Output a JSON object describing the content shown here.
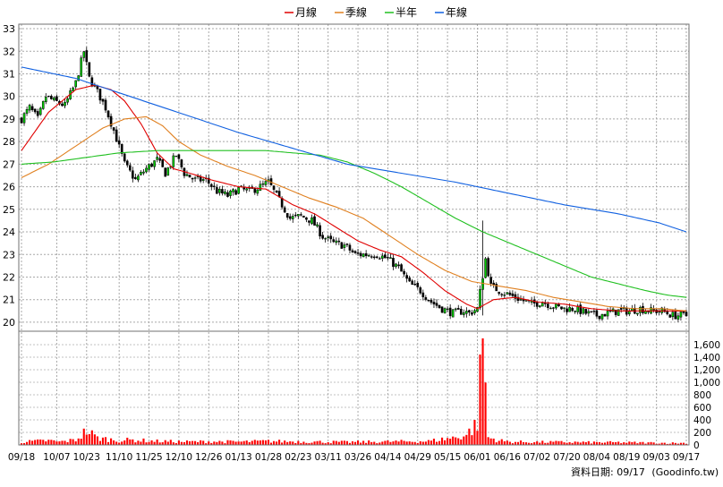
{
  "chart_data": {
    "type": "candlestick",
    "legend": {
      "placement": "top-center",
      "items": [
        {
          "name": "月線",
          "color": "#e00000"
        },
        {
          "name": "季線",
          "color": "#e08020"
        },
        {
          "name": "半年",
          "color": "#20c020"
        },
        {
          "name": "年線",
          "color": "#1060e0"
        }
      ]
    },
    "price_axis": {
      "min": 19.6,
      "max": 33.2,
      "ticks": [
        20,
        21,
        22,
        23,
        24,
        25,
        26,
        27,
        28,
        29,
        30,
        31,
        32,
        33
      ],
      "position": "left"
    },
    "volume_axis": {
      "min": 0,
      "max": 1700,
      "ticks": [
        0,
        200,
        400,
        600,
        800,
        1000,
        1200,
        1400,
        1600
      ],
      "tick_labels": [
        "0",
        "200",
        "400",
        "600",
        "800",
        "1,000",
        "1,200",
        "1,400",
        "1,600"
      ],
      "position": "right"
    },
    "x_labels": [
      {
        "label": "09/18",
        "idx": 0
      },
      {
        "label": "10/07",
        "idx": 13
      },
      {
        "label": "10/23",
        "idx": 24
      },
      {
        "label": "11/10",
        "idx": 36
      },
      {
        "label": "11/25",
        "idx": 47
      },
      {
        "label": "12/10",
        "idx": 58
      },
      {
        "label": "12/26",
        "idx": 69
      },
      {
        "label": "01/13",
        "idx": 80
      },
      {
        "label": "01/28",
        "idx": 91
      },
      {
        "label": "02/23",
        "idx": 102
      },
      {
        "label": "03/11",
        "idx": 113
      },
      {
        "label": "03/26",
        "idx": 124
      },
      {
        "label": "04/14",
        "idx": 135
      },
      {
        "label": "04/29",
        "idx": 146
      },
      {
        "label": "05/15",
        "idx": 157
      },
      {
        "label": "06/01",
        "idx": 168
      },
      {
        "label": "06/16",
        "idx": 179
      },
      {
        "label": "07/02",
        "idx": 190
      },
      {
        "label": "07/20",
        "idx": 201
      },
      {
        "label": "08/04",
        "idx": 212
      },
      {
        "label": "08/19",
        "idx": 223
      },
      {
        "label": "09/03",
        "idx": 234
      },
      {
        "label": "09/17",
        "idx": 245
      }
    ],
    "n_days": 246,
    "price_anchors": [
      [
        0,
        29.0
      ],
      [
        3,
        29.5
      ],
      [
        6,
        29.0
      ],
      [
        9,
        30.0
      ],
      [
        12,
        29.8
      ],
      [
        16,
        29.6
      ],
      [
        20,
        30.6
      ],
      [
        23,
        32.0
      ],
      [
        25,
        30.8
      ],
      [
        28,
        30.2
      ],
      [
        31,
        29.5
      ],
      [
        34,
        28.5
      ],
      [
        38,
        27.0
      ],
      [
        42,
        26.3
      ],
      [
        46,
        26.8
      ],
      [
        50,
        27.2
      ],
      [
        53,
        26.6
      ],
      [
        57,
        27.4
      ],
      [
        60,
        26.6
      ],
      [
        64,
        26.3
      ],
      [
        68,
        26.3
      ],
      [
        72,
        25.8
      ],
      [
        76,
        25.6
      ],
      [
        80,
        25.9
      ],
      [
        84,
        25.8
      ],
      [
        88,
        26.0
      ],
      [
        91,
        26.2
      ],
      [
        95,
        25.4
      ],
      [
        99,
        24.6
      ],
      [
        103,
        24.7
      ],
      [
        107,
        24.5
      ],
      [
        111,
        23.8
      ],
      [
        115,
        23.5
      ],
      [
        119,
        23.4
      ],
      [
        123,
        23.0
      ],
      [
        127,
        23.0
      ],
      [
        131,
        23.0
      ],
      [
        135,
        22.8
      ],
      [
        139,
        22.4
      ],
      [
        143,
        21.7
      ],
      [
        147,
        21.4
      ],
      [
        151,
        20.9
      ],
      [
        155,
        20.6
      ],
      [
        159,
        20.4
      ],
      [
        163,
        20.5
      ],
      [
        165,
        20.4
      ],
      [
        168,
        20.6
      ],
      [
        171,
        22.8
      ],
      [
        173,
        21.6
      ],
      [
        176,
        21.4
      ],
      [
        180,
        21.2
      ],
      [
        184,
        21.0
      ],
      [
        188,
        20.8
      ],
      [
        192,
        20.9
      ],
      [
        196,
        20.7
      ],
      [
        200,
        20.6
      ],
      [
        204,
        20.6
      ],
      [
        208,
        20.4
      ],
      [
        212,
        20.3
      ],
      [
        216,
        20.4
      ],
      [
        220,
        20.5
      ],
      [
        224,
        20.5
      ],
      [
        228,
        20.6
      ],
      [
        232,
        20.5
      ],
      [
        236,
        20.5
      ],
      [
        240,
        20.3
      ],
      [
        245,
        20.3
      ]
    ],
    "ma_series": [
      {
        "name": "月線",
        "color": "#e00000",
        "anchors": [
          [
            0,
            27.6
          ],
          [
            10,
            29.3
          ],
          [
            20,
            30.3
          ],
          [
            27,
            30.5
          ],
          [
            33,
            30.3
          ],
          [
            38,
            29.8
          ],
          [
            44,
            28.8
          ],
          [
            50,
            27.5
          ],
          [
            56,
            26.8
          ],
          [
            62,
            26.6
          ],
          [
            70,
            26.3
          ],
          [
            80,
            26.0
          ],
          [
            90,
            25.9
          ],
          [
            100,
            25.2
          ],
          [
            108,
            24.8
          ],
          [
            116,
            24.2
          ],
          [
            124,
            23.6
          ],
          [
            132,
            23.2
          ],
          [
            140,
            22.9
          ],
          [
            148,
            22.2
          ],
          [
            156,
            21.4
          ],
          [
            164,
            20.8
          ],
          [
            168,
            20.6
          ],
          [
            174,
            21.0
          ],
          [
            182,
            21.1
          ],
          [
            190,
            20.9
          ],
          [
            200,
            20.8
          ],
          [
            210,
            20.6
          ],
          [
            220,
            20.5
          ],
          [
            230,
            20.5
          ],
          [
            238,
            20.5
          ],
          [
            245,
            20.5
          ]
        ]
      },
      {
        "name": "季線",
        "color": "#e08020",
        "anchors": [
          [
            0,
            26.4
          ],
          [
            10,
            27.0
          ],
          [
            20,
            27.8
          ],
          [
            30,
            28.6
          ],
          [
            38,
            29.0
          ],
          [
            46,
            29.1
          ],
          [
            52,
            28.7
          ],
          [
            58,
            28.0
          ],
          [
            66,
            27.4
          ],
          [
            76,
            26.9
          ],
          [
            86,
            26.5
          ],
          [
            96,
            26.0
          ],
          [
            106,
            25.5
          ],
          [
            116,
            25.1
          ],
          [
            126,
            24.6
          ],
          [
            136,
            23.8
          ],
          [
            146,
            23.0
          ],
          [
            156,
            22.3
          ],
          [
            166,
            21.8
          ],
          [
            176,
            21.6
          ],
          [
            186,
            21.4
          ],
          [
            196,
            21.1
          ],
          [
            206,
            20.9
          ],
          [
            216,
            20.7
          ],
          [
            226,
            20.6
          ],
          [
            236,
            20.6
          ],
          [
            245,
            20.5
          ]
        ]
      },
      {
        "name": "半年",
        "color": "#20c020",
        "anchors": [
          [
            0,
            27.0
          ],
          [
            12,
            27.1
          ],
          [
            24,
            27.3
          ],
          [
            36,
            27.5
          ],
          [
            50,
            27.6
          ],
          [
            70,
            27.6
          ],
          [
            90,
            27.6
          ],
          [
            100,
            27.5
          ],
          [
            110,
            27.4
          ],
          [
            120,
            27.1
          ],
          [
            130,
            26.6
          ],
          [
            140,
            26.0
          ],
          [
            150,
            25.3
          ],
          [
            160,
            24.6
          ],
          [
            170,
            24.0
          ],
          [
            180,
            23.5
          ],
          [
            190,
            23.0
          ],
          [
            200,
            22.5
          ],
          [
            210,
            22.0
          ],
          [
            220,
            21.7
          ],
          [
            230,
            21.4
          ],
          [
            238,
            21.2
          ],
          [
            245,
            21.1
          ]
        ]
      },
      {
        "name": "年線",
        "color": "#1060e0",
        "anchors": [
          [
            0,
            31.3
          ],
          [
            20,
            30.8
          ],
          [
            40,
            30.0
          ],
          [
            60,
            29.2
          ],
          [
            80,
            28.4
          ],
          [
            100,
            27.7
          ],
          [
            120,
            27.0
          ],
          [
            140,
            26.6
          ],
          [
            160,
            26.2
          ],
          [
            180,
            25.7
          ],
          [
            200,
            25.2
          ],
          [
            220,
            24.8
          ],
          [
            235,
            24.4
          ],
          [
            245,
            24.0
          ]
        ]
      }
    ],
    "volume_anchors": [
      [
        0,
        45
      ],
      [
        5,
        60
      ],
      [
        10,
        70
      ],
      [
        14,
        50
      ],
      [
        20,
        80
      ],
      [
        24,
        230
      ],
      [
        28,
        110
      ],
      [
        32,
        90
      ],
      [
        36,
        70
      ],
      [
        40,
        80
      ],
      [
        50,
        60
      ],
      [
        60,
        50
      ],
      [
        70,
        55
      ],
      [
        80,
        50
      ],
      [
        90,
        60
      ],
      [
        100,
        55
      ],
      [
        110,
        50
      ],
      [
        120,
        45
      ],
      [
        130,
        50
      ],
      [
        140,
        55
      ],
      [
        150,
        60
      ],
      [
        160,
        120
      ],
      [
        164,
        160
      ],
      [
        168,
        350
      ],
      [
        170,
        1700
      ],
      [
        172,
        120
      ],
      [
        176,
        70
      ],
      [
        180,
        50
      ],
      [
        190,
        45
      ],
      [
        200,
        45
      ],
      [
        210,
        40
      ],
      [
        220,
        40
      ],
      [
        230,
        35
      ],
      [
        240,
        30
      ],
      [
        245,
        30
      ]
    ],
    "volume_color": "#ff0000",
    "up_color": "#00cc00",
    "down_color": "#000000"
  },
  "footer": {
    "label": "資料日期: 09/17",
    "source": "(Goodinfo.tw)"
  }
}
